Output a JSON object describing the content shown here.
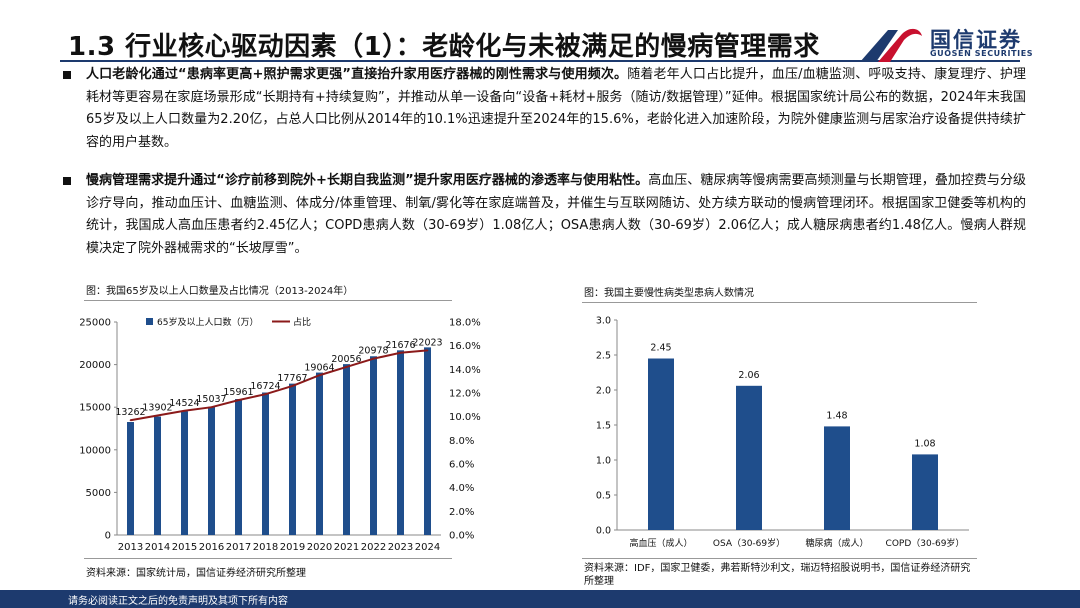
{
  "header": {
    "title": "1.3 行业核心驱动因素（1）：老龄化与未被满足的慢病管理需求",
    "logo_cn": "国信证券",
    "logo_en": "GUOSEN SECURITIES"
  },
  "paragraphs": [
    {
      "lead": "人口老龄化通过“患病率更高+照护需求更强”直接抬升家用医疗器械的刚性需求与使用频次。",
      "body": "随着老年人口占比提升，血压/血糖监测、呼吸支持、康复理疗、护理耗材等更容易在家庭场景形成“长期持有+持续复购”，并推动从单一设备向“设备+耗材+服务（随访/数据管理）”延伸。根据国家统计局公布的数据，2024年末我国65岁及以上人口数量为2.20亿，占总人口比例从2014年的10.1%迅速提升至2024年的15.6%，老龄化进入加速阶段，为院外健康监测与居家治疗设备提供持续扩容的用户基数。"
    },
    {
      "lead": "慢病管理需求提升通过“诊疗前移到院外+长期自我监测”提升家用医疗器械的渗透率与使用粘性。",
      "body": "高血压、糖尿病等慢病需要高频测量与长期管理，叠加控费与分级诊疗导向，推动血压计、血糖监测、体成分/体重管理、制氧/雾化等在家庭端普及，并催生与互联网随访、处方续方联动的慢病管理闭环。根据国家卫健委等机构的统计，我国成人高血压患者约2.45亿人；COPD患病人数（30-69岁）1.08亿人；OSA患病人数（30-69岁）2.06亿人；成人糖尿病患者约1.48亿人。慢病人群规模决定了院外器械需求的“长坡厚雪”。"
    }
  ],
  "footer": {
    "disclaimer": "请务必阅读正文之后的免责声明及其项下所有内容"
  },
  "colors": {
    "navy": "#1d3a6e",
    "bar": "#1f4e8c",
    "line": "#8b1a1a"
  },
  "chart_data": [
    {
      "type": "bar",
      "caption": "图：我国65岁及以上人口数量及占比情况（2013-2024年）",
      "source": "资料来源：国家统计局，国信证券经济研究所整理",
      "categories": [
        "2013",
        "2014",
        "2015",
        "2016",
        "2017",
        "2018",
        "2019",
        "2020",
        "2021",
        "2022",
        "2023",
        "2024"
      ],
      "series": [
        {
          "name": "65岁及以上人口数（万）",
          "type": "bar",
          "axis": "left",
          "values": [
            13262,
            13902,
            14524,
            15037,
            15961,
            16724,
            17767,
            19064,
            20056,
            20978,
            21676,
            22023
          ],
          "labels": [
            "13262",
            "13902",
            "14524",
            "15037",
            "15961",
            "16724",
            "17767",
            "19064",
            "20056",
            "20978",
            "21676",
            "22023"
          ]
        },
        {
          "name": "占比",
          "type": "line",
          "axis": "right",
          "values": [
            9.7,
            10.1,
            10.5,
            10.8,
            11.4,
            11.9,
            12.6,
            13.5,
            14.2,
            14.9,
            15.4,
            15.6
          ]
        }
      ],
      "ylim": [
        0,
        25000
      ],
      "yticks": [
        "0",
        "5000",
        "10000",
        "15000",
        "20000",
        "25000"
      ],
      "y2lim": [
        0,
        18
      ],
      "y2ticks": [
        "0.0%",
        "2.0%",
        "4.0%",
        "6.0%",
        "8.0%",
        "10.0%",
        "12.0%",
        "14.0%",
        "16.0%",
        "18.0%"
      ],
      "legend": "top-left"
    },
    {
      "type": "bar",
      "caption": "图：我国主要慢性病类型患病人数情况",
      "source": "资料来源：IDF，国家卫健委，弗若斯特沙利文，瑞迈特招股说明书，国信证券经济研究所整理",
      "categories": [
        "高血压（成人）",
        "OSA（30-69岁）",
        "糖尿病（成人）",
        "COPD（30-69岁）"
      ],
      "values": [
        2.45,
        2.06,
        1.48,
        1.08
      ],
      "labels": [
        "2.45",
        "2.06",
        "1.48",
        "1.08"
      ],
      "ylim": [
        0,
        3.0
      ],
      "yticks": [
        "0.0",
        "0.5",
        "1.0",
        "1.5",
        "2.0",
        "2.5",
        "3.0"
      ]
    }
  ]
}
